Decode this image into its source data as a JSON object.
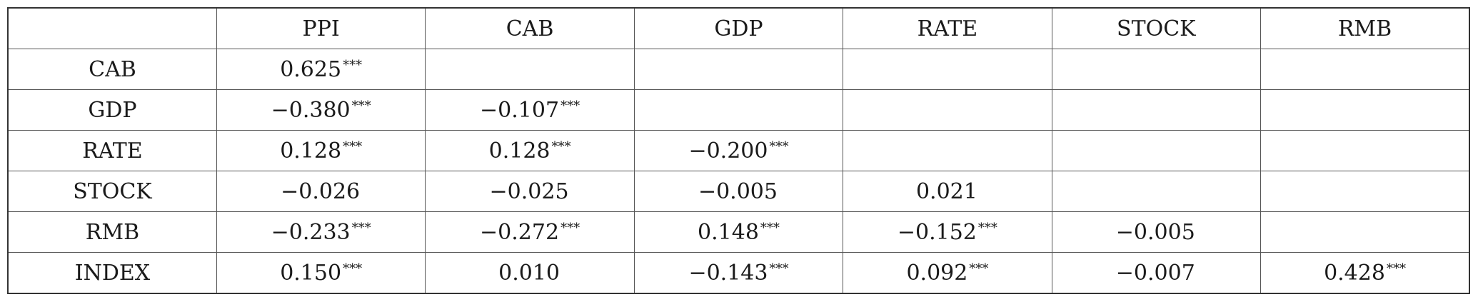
{
  "table": {
    "columns": [
      "",
      "PPI",
      "CAB",
      "GDP",
      "RATE",
      "STOCK",
      "RMB"
    ],
    "rows": [
      {
        "label": "CAB",
        "cells": [
          {
            "value": "0.625",
            "stars": "***"
          },
          {
            "value": "",
            "stars": ""
          },
          {
            "value": "",
            "stars": ""
          },
          {
            "value": "",
            "stars": ""
          },
          {
            "value": "",
            "stars": ""
          },
          {
            "value": "",
            "stars": ""
          }
        ]
      },
      {
        "label": "GDP",
        "cells": [
          {
            "value": "−0.380",
            "stars": "***"
          },
          {
            "value": "−0.107",
            "stars": "***"
          },
          {
            "value": "",
            "stars": ""
          },
          {
            "value": "",
            "stars": ""
          },
          {
            "value": "",
            "stars": ""
          },
          {
            "value": "",
            "stars": ""
          }
        ]
      },
      {
        "label": "RATE",
        "cells": [
          {
            "value": "0.128",
            "stars": "***"
          },
          {
            "value": "0.128",
            "stars": "***"
          },
          {
            "value": "−0.200",
            "stars": "***"
          },
          {
            "value": "",
            "stars": ""
          },
          {
            "value": "",
            "stars": ""
          },
          {
            "value": "",
            "stars": ""
          }
        ]
      },
      {
        "label": "STOCK",
        "cells": [
          {
            "value": "−0.026",
            "stars": ""
          },
          {
            "value": "−0.025",
            "stars": ""
          },
          {
            "value": "−0.005",
            "stars": ""
          },
          {
            "value": "0.021",
            "stars": ""
          },
          {
            "value": "",
            "stars": ""
          },
          {
            "value": "",
            "stars": ""
          }
        ]
      },
      {
        "label": "RMB",
        "cells": [
          {
            "value": "−0.233",
            "stars": "***"
          },
          {
            "value": "−0.272",
            "stars": "***"
          },
          {
            "value": "0.148",
            "stars": "***"
          },
          {
            "value": "−0.152",
            "stars": "***"
          },
          {
            "value": "−0.005",
            "stars": ""
          },
          {
            "value": "",
            "stars": ""
          }
        ]
      },
      {
        "label": "INDEX",
        "cells": [
          {
            "value": "0.150",
            "stars": "***"
          },
          {
            "value": "0.010",
            "stars": ""
          },
          {
            "value": "−0.143",
            "stars": "***"
          },
          {
            "value": "0.092",
            "stars": "***"
          },
          {
            "value": "−0.007",
            "stars": ""
          },
          {
            "value": "0.428",
            "stars": "***"
          }
        ]
      }
    ]
  }
}
